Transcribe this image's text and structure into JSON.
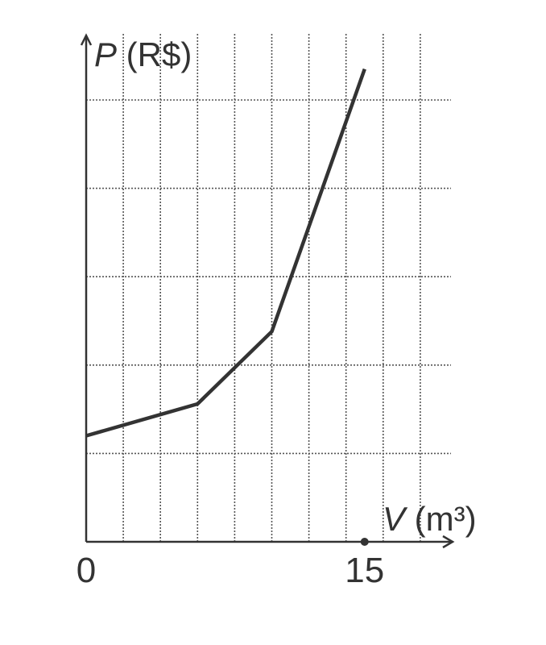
{
  "chart_data": {
    "type": "line",
    "title": "",
    "ylabel": {
      "var": "P",
      "unit": " (R$)"
    },
    "xlabel": {
      "var": "V",
      "unit": " (m³)"
    },
    "x_ticks": [
      "0",
      "15"
    ],
    "xlim": [
      0,
      18
    ],
    "ylim": [
      0,
      5.35
    ],
    "grid": true,
    "x_gridlines": [
      2,
      4,
      6,
      8,
      10,
      12,
      14,
      16,
      18
    ],
    "y_gridlines": [
      1,
      2,
      3,
      4,
      5
    ],
    "marked_point_x": 15,
    "series": [
      {
        "x": [
          0,
          6,
          10,
          15
        ],
        "y": [
          1.2,
          1.56,
          2.38,
          5.35
        ]
      }
    ]
  }
}
